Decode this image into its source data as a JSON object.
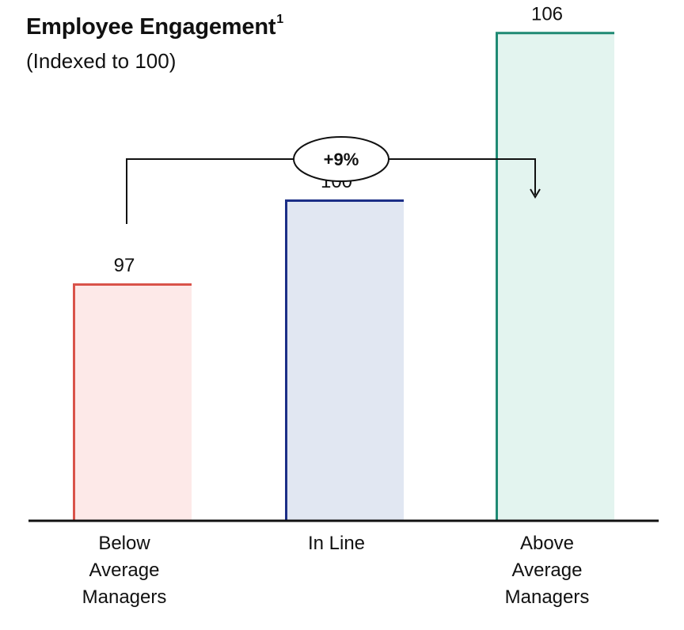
{
  "chart_data": {
    "type": "bar",
    "title": "Employee Engagement",
    "title_footnote": "1",
    "subtitle": "(Indexed to 100)",
    "categories": [
      [
        "Below",
        "Average",
        "Managers"
      ],
      [
        "In Line"
      ],
      [
        "Above",
        "Average",
        "Managers"
      ]
    ],
    "values": [
      97,
      100,
      106
    ],
    "value_labels": [
      "97",
      "100",
      "106"
    ],
    "colors": {
      "strokes": [
        "#d9534a",
        "#1c2f87",
        "#1f8a74"
      ],
      "fills": [
        "#fde9e8",
        "#e1e7f2",
        "#e3f4ef"
      ]
    },
    "annotation": {
      "label": "+9%",
      "from_category": 0,
      "to_category": 2
    }
  }
}
